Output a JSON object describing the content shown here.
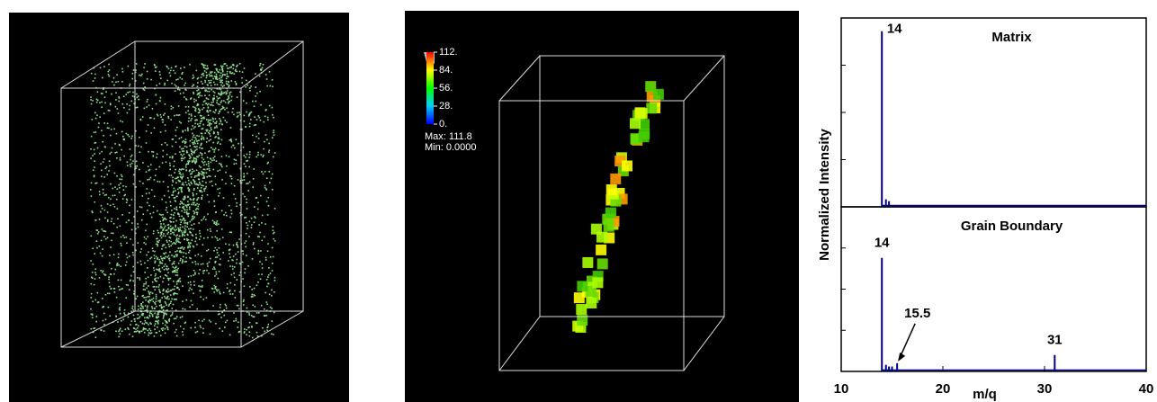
{
  "chart_data": [
    {
      "type": "bar",
      "title": "Matrix",
      "x": [
        14,
        14.4,
        14.7
      ],
      "values": [
        0.93,
        0.04,
        0.03
      ],
      "color": "#00008b",
      "xlim": [
        10,
        40
      ],
      "ylim": [
        0,
        1
      ],
      "y_label": "Normalized Intensity",
      "annotations": [
        {
          "text": "14",
          "x": 14
        }
      ]
    },
    {
      "type": "bar",
      "title": "Grain Boundary",
      "x": [
        14,
        14.4,
        14.7,
        15,
        15.5,
        30,
        31
      ],
      "values": [
        0.69,
        0.04,
        0.03,
        0.03,
        0.05,
        0.01,
        0.1
      ],
      "color": "#00008b",
      "xlim": [
        10,
        40
      ],
      "ylim": [
        0,
        1
      ],
      "xticks": [
        10,
        20,
        30,
        40
      ],
      "x_label": "m/q",
      "annotations": [
        {
          "text": "14",
          "x": 14
        },
        {
          "text": "15.5",
          "x": 15.5,
          "arrow": true
        },
        {
          "text": "31",
          "x": 31
        }
      ]
    }
  ],
  "colorbar": {
    "ticks": [
      {
        "value": 112,
        "label": "112."
      },
      {
        "value": 84,
        "label": "84."
      },
      {
        "value": 56,
        "label": "56."
      },
      {
        "value": 28,
        "label": "28."
      },
      {
        "value": 0,
        "label": "0."
      }
    ],
    "range": [
      0,
      112
    ],
    "max_label": "Max: 111.8",
    "min_label": "Min: 0.0000"
  }
}
